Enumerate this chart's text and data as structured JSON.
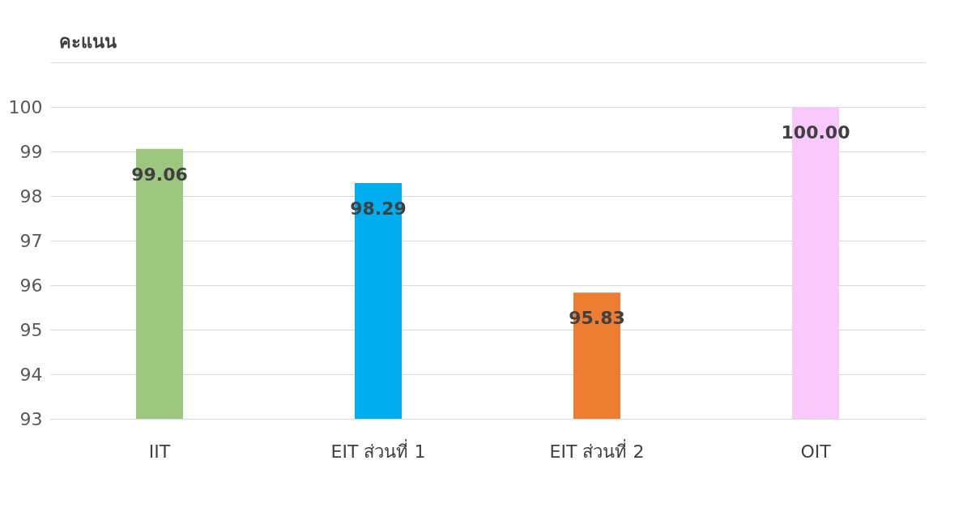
{
  "chart_data": {
    "type": "bar",
    "ylabel": "คะแนน",
    "categories": [
      "IIT",
      "EIT ส่วนที่ 1",
      "EIT ส่วนที่ 2",
      "OIT"
    ],
    "values": [
      99.06,
      98.29,
      95.83,
      100.0
    ],
    "value_labels": [
      "99.06",
      "98.29",
      "95.83",
      "100.00"
    ],
    "colors": [
      "#9dc77e",
      "#00aeef",
      "#ed7d31",
      "#f9c9fb"
    ],
    "ylim": [
      93,
      101
    ],
    "yticks": [
      93,
      94,
      95,
      96,
      97,
      98,
      99,
      100,
      {
        "value": 101,
        "label": null
      }
    ],
    "grid": "y",
    "legend": false
  }
}
